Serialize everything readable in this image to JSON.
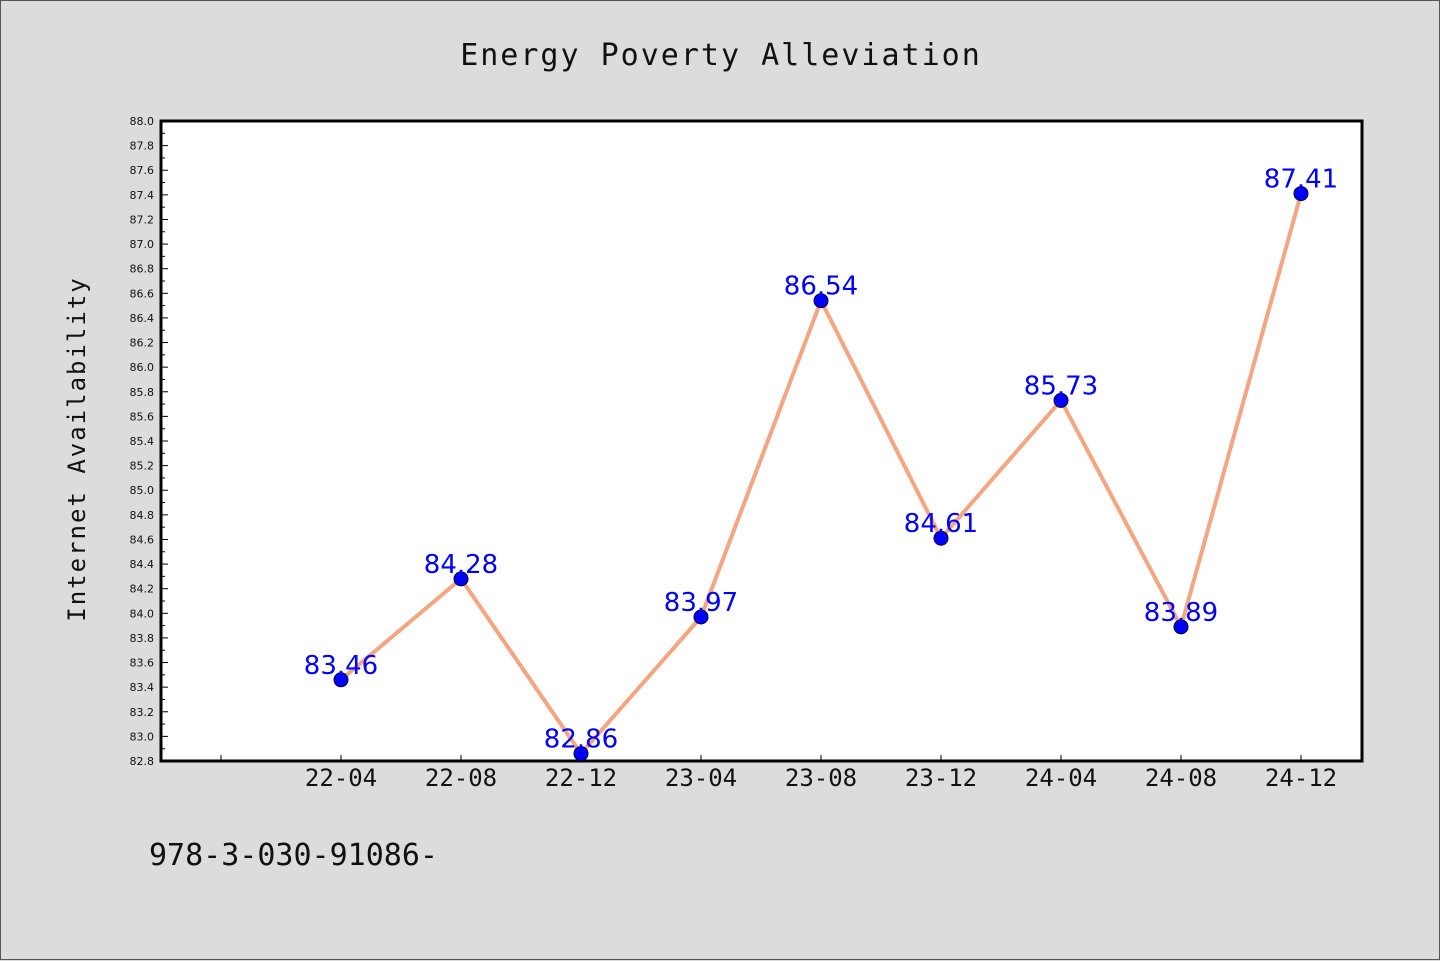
{
  "chart_data": {
    "type": "line",
    "title": "Energy Poverty Alleviation",
    "xlabel": "",
    "ylabel": "Internet Availability",
    "categories": [
      "22-04",
      "22-08",
      "22-12",
      "23-04",
      "23-08",
      "23-12",
      "24-04",
      "24-08",
      "24-12"
    ],
    "series": [
      {
        "values": [
          83.46,
          84.28,
          82.86,
          83.97,
          86.54,
          84.61,
          85.73,
          83.89,
          87.41
        ],
        "labels": [
          "83.46",
          "84.28",
          "82.86",
          "83.97",
          "86.54",
          "84.61",
          "85.73",
          "83.89",
          "87.41"
        ],
        "line_color": "#f4a582",
        "marker_color": "#0000ff"
      }
    ],
    "ylim": [
      82.8,
      88.0
    ],
    "y_ticks": [
      "82.8",
      "83.0",
      "83.2",
      "83.4",
      "83.6",
      "83.8",
      "84.0",
      "84.2",
      "84.4",
      "84.6",
      "84.8",
      "85.0",
      "85.2",
      "85.4",
      "85.6",
      "85.8",
      "86.0",
      "86.2",
      "86.4",
      "86.6",
      "86.8",
      "87.0",
      "87.2",
      "87.4",
      "87.6",
      "87.8",
      "88.0"
    ],
    "grid": false,
    "legend": "none"
  },
  "footer": {
    "text": "978-3-030-91086-"
  }
}
